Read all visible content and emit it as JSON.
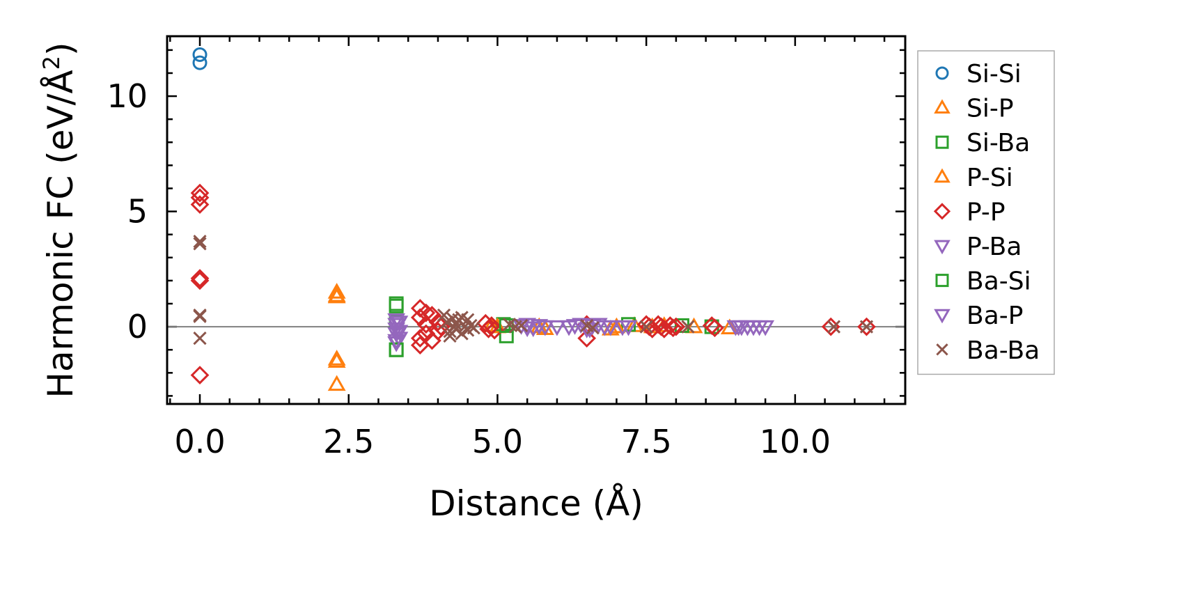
{
  "chart_data": {
    "type": "scatter",
    "title": "",
    "xlabel": "Distance (Å)",
    "ylabel_main": "Harmonic FC (eV/Å",
    "ylabel_sup": "2",
    "ylabel_end": ")",
    "xlim": [
      -0.55,
      11.85
    ],
    "ylim": [
      -3.35,
      12.6
    ],
    "xticks": [
      0.0,
      2.5,
      5.0,
      7.5,
      10.0
    ],
    "xtick_labels": [
      "0.0",
      "2.5",
      "5.0",
      "7.5",
      "10.0"
    ],
    "yticks": [
      0,
      5,
      10
    ],
    "ytick_labels": [
      "0",
      "5",
      "10"
    ],
    "zero_line": true,
    "legend_position": "outside-right",
    "series": [
      {
        "name": "Si-Si",
        "marker": "circle",
        "color": "#1f77b4",
        "x": [
          0,
          0
        ],
        "y": [
          11.8,
          11.45
        ]
      },
      {
        "name": "Si-P",
        "marker": "triangle-up",
        "color": "#ff7f0e",
        "x": [
          2.3,
          2.3,
          2.3,
          2.3,
          4.9,
          5.7,
          5.8,
          6.9,
          7.3,
          7.6,
          8.3,
          8.9
        ],
        "y": [
          1.5,
          1.3,
          -1.4,
          -2.5,
          0.05,
          0,
          -0.08,
          -0.1,
          0.05,
          0,
          0,
          -0.05
        ]
      },
      {
        "name": "Si-Ba",
        "marker": "square",
        "color": "#2ca02c",
        "x": [
          3.3,
          3.3,
          3.3,
          5.1,
          5.15,
          7.2,
          8.1,
          8.6
        ],
        "y": [
          1.0,
          0.2,
          -1.0,
          0.1,
          -0.4,
          0.1,
          0.05,
          0
        ]
      },
      {
        "name": "P-Si",
        "marker": "triangle-up",
        "color": "#ff7f0e",
        "x": [
          2.3,
          2.3,
          5.0,
          7.0,
          7.8
        ],
        "y": [
          1.35,
          -1.5,
          0,
          0,
          0.05
        ]
      },
      {
        "name": "P-P",
        "marker": "diamond",
        "color": "#d62728",
        "x": [
          0,
          0,
          0,
          0,
          0,
          0,
          3.7,
          3.7,
          3.7,
          3.7,
          3.8,
          3.8,
          3.8,
          3.9,
          3.9,
          4.0,
          4.0,
          4.05,
          4.8,
          4.85,
          4.9,
          4.95,
          6.5,
          6.5,
          7.5,
          7.55,
          7.6,
          7.7,
          7.75,
          7.8,
          7.9,
          7.95,
          8.0,
          8.6,
          8.65,
          10.6,
          11.2
        ],
        "y": [
          5.8,
          5.6,
          5.3,
          2.1,
          2.0,
          -2.1,
          0.8,
          0.4,
          -0.5,
          -0.8,
          0.6,
          0.1,
          -0.3,
          0.5,
          -0.6,
          0.2,
          -0.2,
          0,
          0.15,
          -0.1,
          0.05,
          -0.15,
          0.1,
          -0.5,
          0.1,
          0,
          -0.1,
          0.1,
          0,
          -0.1,
          0.05,
          -0.05,
          0,
          0.05,
          -0.05,
          0,
          0
        ]
      },
      {
        "name": "P-Ba",
        "marker": "triangle-down",
        "color": "#9467bd",
        "x": [
          3.3,
          3.3,
          3.3,
          3.3,
          3.3,
          3.35,
          3.35,
          5.5,
          5.6,
          5.7,
          5.8,
          6.2,
          6.4,
          6.5,
          6.6,
          6.7,
          6.8,
          7.1,
          9.0,
          9.1,
          9.2,
          9.3,
          9.4
        ],
        "y": [
          0.3,
          0.1,
          -0.1,
          -0.3,
          -0.7,
          0.2,
          -0.5,
          0.1,
          -0.05,
          0.05,
          0,
          0,
          0.1,
          -0.1,
          0.05,
          0.1,
          0,
          0,
          0,
          0,
          0,
          0,
          0
        ]
      },
      {
        "name": "Ba-Si",
        "marker": "square",
        "color": "#2ca02c",
        "x": [
          3.3,
          3.3,
          5.15
        ],
        "y": [
          0.9,
          -1.0,
          0.05
        ]
      },
      {
        "name": "Ba-P",
        "marker": "triangle-down",
        "color": "#9467bd",
        "x": [
          3.3,
          3.35,
          5.4,
          5.5,
          6.0,
          6.3,
          6.55,
          6.9,
          7.2,
          9.05,
          9.2,
          9.5
        ],
        "y": [
          -0.6,
          -0.2,
          0.05,
          -0.05,
          0,
          0.05,
          -0.1,
          0,
          0,
          0,
          0,
          0
        ]
      },
      {
        "name": "Ba-Ba",
        "marker": "x",
        "color": "#8c564b",
        "x": [
          0,
          0,
          0,
          0,
          0,
          4.1,
          4.15,
          4.2,
          4.2,
          4.25,
          4.3,
          4.3,
          4.35,
          4.4,
          4.4,
          4.45,
          4.5,
          4.5,
          4.55,
          4.6,
          5.2,
          5.3,
          5.4,
          6.5,
          6.6,
          7.5,
          8.2,
          10.65,
          11.2
        ],
        "y": [
          3.7,
          3.6,
          0.5,
          -0.5,
          0.45,
          0.5,
          0.2,
          -0.2,
          -0.4,
          0.35,
          0.1,
          -0.1,
          0.3,
          0.4,
          -0.3,
          0.0,
          0.3,
          -0.15,
          0.05,
          -0.05,
          0.1,
          0,
          0.05,
          0.05,
          -0.05,
          0,
          0,
          0,
          0
        ]
      }
    ]
  }
}
